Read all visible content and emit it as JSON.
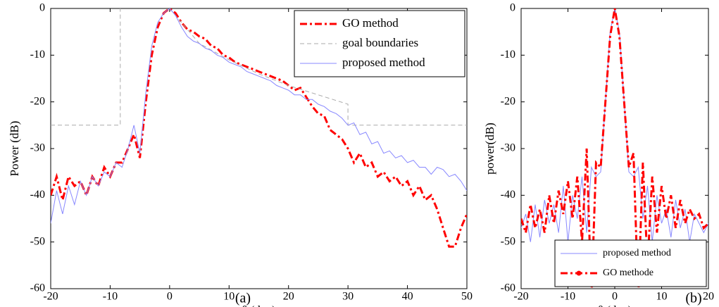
{
  "chart_data": [
    {
      "type": "line",
      "xlabel": "θ (deg)",
      "ylabel": "Power (dB)",
      "caption": "(a)",
      "xlim": [
        -20,
        50
      ],
      "ylim": [
        -60,
        0
      ],
      "xticks": [
        -20,
        -10,
        0,
        10,
        20,
        30,
        40,
        50
      ],
      "yticks": [
        -60,
        -50,
        -40,
        -30,
        -20,
        -10,
        0
      ],
      "legend": "upper right",
      "series": [
        {
          "name": "GO method",
          "color": "#ff0000",
          "linestyle": "dashdot",
          "x": [
            -20,
            -19,
            -18,
            -17,
            -16,
            -15,
            -14,
            -13,
            -12,
            -11,
            -10,
            -9,
            -8,
            -7,
            -6,
            -5,
            -4,
            -3,
            -2,
            -1,
            0,
            1,
            2,
            3,
            4,
            5,
            6,
            7,
            8,
            9,
            10,
            11,
            12,
            13,
            14,
            15,
            16,
            17,
            18,
            19,
            20,
            21,
            22,
            23,
            24,
            25,
            26,
            27,
            28,
            29,
            30,
            31,
            32,
            33,
            34,
            35,
            36,
            37,
            38,
            39,
            40,
            41,
            42,
            43,
            44,
            45,
            46,
            47,
            48,
            49,
            50
          ],
          "values": [
            -40,
            -36,
            -41,
            -36,
            -38,
            -37,
            -40,
            -36,
            -38,
            -34,
            -36,
            -33,
            -33,
            -30,
            -27,
            -32,
            -20,
            -10,
            -4,
            -1,
            0,
            -1,
            -3,
            -4.5,
            -5,
            -6,
            -6.5,
            -8,
            -8.5,
            -10,
            -10.5,
            -11.5,
            -12,
            -12.5,
            -13,
            -13.5,
            -14,
            -14.5,
            -15,
            -15.5,
            -16.5,
            -17.5,
            -17,
            -19,
            -21,
            -22.5,
            -23,
            -26,
            -27,
            -28,
            -30,
            -33,
            -31,
            -34,
            -33,
            -36,
            -35,
            -37,
            -36,
            -38,
            -37,
            -40,
            -38,
            -41,
            -40,
            -43,
            -47,
            -51,
            -51,
            -47,
            -44
          ]
        },
        {
          "name": "goal boundaries",
          "color": "#aaaaaa",
          "linestyle": "dashed",
          "x": [
            -20,
            -8.3,
            -8.3,
            -8,
            0,
            2,
            5,
            10,
            15,
            20,
            25,
            30,
            30,
            50
          ],
          "values": [
            -25,
            -25,
            0,
            null,
            0,
            -3,
            -7.5,
            -11,
            -14,
            -16.5,
            -18.5,
            -20.5,
            -25,
            -25
          ]
        },
        {
          "name": "proposed method",
          "color": "#8888ff",
          "linestyle": "solid",
          "x": [
            -20,
            -19,
            -18,
            -17,
            -16,
            -15,
            -14,
            -13,
            -12,
            -11,
            -10,
            -9,
            -8,
            -7,
            -6,
            -5,
            -4,
            -3,
            -2,
            -1,
            0,
            1,
            2,
            3,
            4,
            5,
            6,
            7,
            8,
            9,
            10,
            11,
            12,
            13,
            14,
            15,
            16,
            17,
            18,
            19,
            20,
            21,
            22,
            23,
            24,
            25,
            26,
            27,
            28,
            29,
            30,
            31,
            32,
            33,
            34,
            35,
            36,
            37,
            38,
            39,
            40,
            41,
            42,
            43,
            44,
            45,
            46,
            47,
            48,
            49,
            50
          ],
          "values": [
            -46,
            -39,
            -44,
            -38,
            -42,
            -37,
            -40,
            -36,
            -38,
            -35,
            -36,
            -33,
            -34,
            -30,
            -25,
            -31,
            -18,
            -8,
            -3,
            -1,
            0,
            -1.5,
            -4,
            -6,
            -7,
            -7.5,
            -8.5,
            -9,
            -10,
            -10.5,
            -11.5,
            -12,
            -12.5,
            -13.5,
            -14,
            -14.5,
            -15,
            -15.5,
            -16.5,
            -17,
            -17.5,
            -18.5,
            -18.5,
            -19.5,
            -19.5,
            -20.5,
            -21,
            -22,
            -22.5,
            -23.5,
            -25,
            -24.5,
            -27,
            -26.5,
            -29,
            -28.5,
            -31,
            -30.5,
            -32,
            -31.5,
            -33,
            -32.5,
            -34,
            -34,
            -35.5,
            -34,
            -34.5,
            -36,
            -35.5,
            -37,
            -39
          ]
        }
      ]
    },
    {
      "type": "line",
      "xlabel": "θ (deg)",
      "ylabel": "power(dB)",
      "caption": "(b)",
      "xlim": [
        -20,
        20
      ],
      "ylim": [
        -60,
        0
      ],
      "xticks": [
        -20,
        -10,
        0,
        10,
        20
      ],
      "yticks": [
        -60,
        -50,
        -40,
        -30,
        -20,
        -10,
        0
      ],
      "legend": "lower right",
      "series": [
        {
          "name": "proposed method",
          "color": "#8888ff",
          "linestyle": "solid",
          "x": [
            -20,
            -19,
            -18,
            -17,
            -16,
            -15,
            -14,
            -13,
            -12,
            -11,
            -10,
            -9,
            -8,
            -7,
            -6,
            -5,
            -4,
            -3,
            -2,
            -1,
            0,
            1,
            2,
            3,
            4,
            5,
            6,
            7,
            8,
            9,
            10,
            11,
            12,
            13,
            14,
            15,
            16,
            17,
            18,
            19,
            20
          ],
          "values": [
            -47,
            -44,
            -50,
            -42,
            -49,
            -41,
            -46,
            -42,
            -48,
            -38,
            -50,
            -40,
            -45,
            -36,
            -48,
            -34,
            -36,
            -35,
            -20,
            -5,
            0,
            -5,
            -20,
            -35,
            -36,
            -34,
            -45,
            -38,
            -50,
            -40,
            -46,
            -43,
            -49,
            -41,
            -47,
            -43,
            -50,
            -44,
            -46,
            -48,
            -46
          ]
        },
        {
          "name": "GO methode",
          "color": "#ff0000",
          "linestyle": "dashdot",
          "marker": "o",
          "x": [
            -20,
            -19,
            -18,
            -17,
            -16,
            -15,
            -14,
            -13,
            -12,
            -11,
            -10,
            -9,
            -8,
            -7,
            -6,
            -5,
            -4,
            -3,
            -2,
            -1,
            0,
            1,
            2,
            3,
            4,
            5,
            6,
            7,
            8,
            9,
            10,
            11,
            12,
            13,
            14,
            15,
            16,
            17,
            18,
            19,
            20
          ],
          "values": [
            -45,
            -48,
            -42,
            -47,
            -43,
            -48,
            -40,
            -46,
            -39,
            -44,
            -37,
            -45,
            -36,
            -50,
            -30,
            -62,
            -33,
            -34,
            -20,
            -6,
            0,
            -6,
            -20,
            -34,
            -31,
            -62,
            -33,
            -55,
            -36,
            -48,
            -38,
            -45,
            -40,
            -47,
            -41,
            -46,
            -43,
            -45,
            -44,
            -47,
            -46
          ]
        }
      ]
    }
  ]
}
